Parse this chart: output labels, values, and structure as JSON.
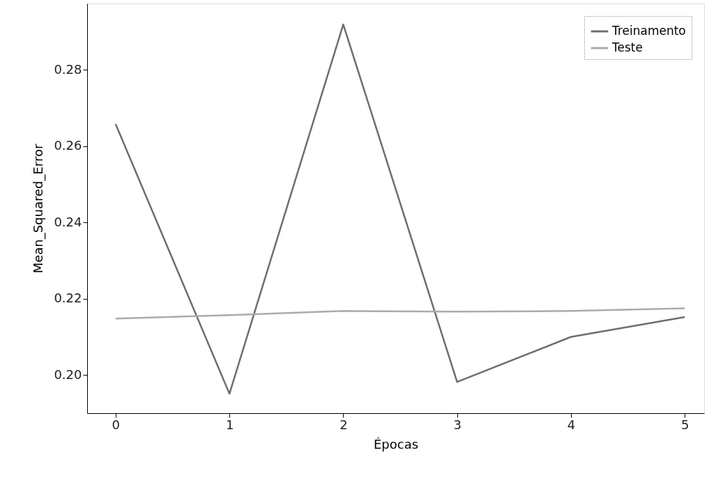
{
  "chart_data": {
    "type": "line",
    "xlabel": "Épocas",
    "ylabel": "Mean_Squared_Error",
    "x": [
      0,
      1,
      2,
      3,
      4,
      5
    ],
    "series": [
      {
        "name": "Treinamento",
        "color": "#6e6e6e",
        "values": [
          0.2658,
          0.1951,
          0.2919,
          0.1982,
          0.21,
          0.2152
        ]
      },
      {
        "name": "Teste",
        "color": "#ababab",
        "values": [
          0.2148,
          0.2157,
          0.2168,
          0.2166,
          0.2168,
          0.2175
        ]
      }
    ],
    "xlim": [
      -0.25,
      5.17
    ],
    "xticks": [
      0,
      1,
      2,
      3,
      4,
      5
    ],
    "ylim": [
      0.19,
      0.2974
    ],
    "yticks": [
      {
        "value": 0.2,
        "label": "0.20"
      },
      {
        "value": 0.22,
        "label": "0.22"
      },
      {
        "value": 0.24,
        "label": "0.24"
      },
      {
        "value": 0.26,
        "label": "0.26"
      },
      {
        "value": 0.28,
        "label": "0.28"
      }
    ],
    "grid": false,
    "legend": "top right",
    "marker": "none",
    "line_style": "solid"
  }
}
